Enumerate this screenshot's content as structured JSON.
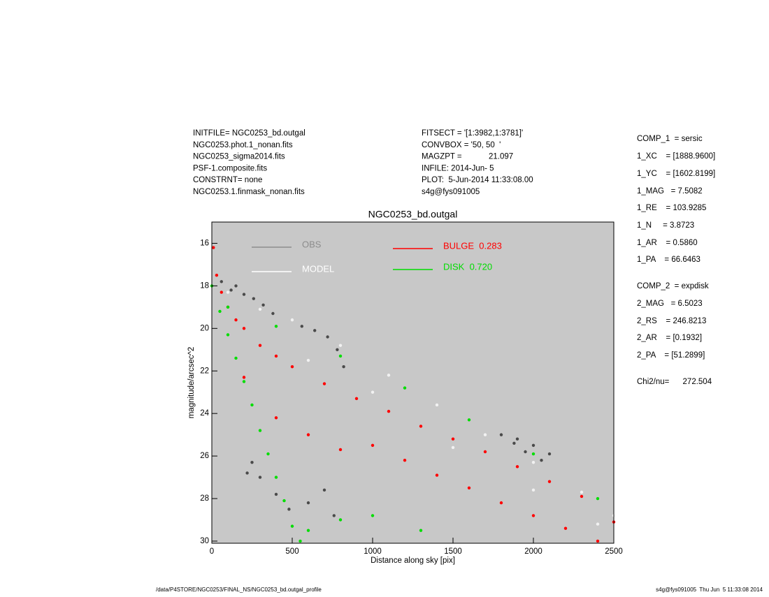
{
  "header": {
    "left": [
      "INITFILE= NGC0253_bd.outgal",
      "NGC0253.phot.1_nonan.fits",
      "NGC0253_sigma2014.fits",
      "PSF-1.composite.fits",
      "CONSTRNT= none",
      "NGC0253.1.finmask_nonan.fits"
    ],
    "center": [
      "FITSECT = '[1:3982,1:3781]'",
      "CONVBOX = '50, 50  '",
      "MAGZPT =            21.097",
      "INFILE: 2014-Jun- 5",
      "PLOT:  5-Jun-2014 11:33:08.00",
      "s4g@fys091005"
    ],
    "right": [
      "COMP_1  = sersic",
      "1_XC    = [1888.9600]",
      "1_YC    = [1602.8199]",
      "1_MAG   = 7.5082",
      "1_RE    = 103.9285",
      "1_N     = 3.8723",
      "1_AR    = 0.5860",
      "1_PA    = 66.6463",
      "COMP_2  = expdisk",
      "2_MAG   = 6.5023",
      "2_RS    = 246.8213",
      "2_AR    = [0.1932]",
      "2_PA    = [51.2899]",
      "Chi2/nu=      272.504"
    ]
  },
  "footer": {
    "left": "/data/P4STORE/NGC0253/FINAL_NS/NGC0253_bd.outgal_profile",
    "right": "s4g@fys091005  Thu Jun  5 11:33:08 2014"
  },
  "chart_data": {
    "type": "scatter",
    "title": "NGC0253_bd.outgal",
    "x_label": "Distance along sky [pix]",
    "y_label": "magnitude/arcsec^2",
    "xlim": [
      0,
      2500
    ],
    "ylim": [
      15,
      30.1
    ],
    "y_inverted": true,
    "xticks": [
      0,
      500,
      1000,
      1500,
      2000,
      2500
    ],
    "yticks": [
      16,
      18,
      20,
      22,
      24,
      26,
      28,
      30
    ],
    "background": "#c8c8c8",
    "series": [
      {
        "name": "OBS",
        "color": "#4a4a4a",
        "legend_color": "#8c8c8c",
        "x": [
          60,
          120,
          150,
          200,
          260,
          320,
          380,
          560,
          640,
          720,
          780,
          820,
          1900,
          1950,
          2000,
          2050,
          2100,
          1800,
          1880,
          300,
          400,
          480,
          600,
          700,
          760,
          220,
          250
        ],
        "y": [
          17.8,
          18.2,
          18,
          18.4,
          18.6,
          18.9,
          19.3,
          19.9,
          20.1,
          20.4,
          21,
          21.8,
          25.2,
          25.8,
          25.5,
          26.2,
          25.9,
          25,
          25.4,
          27,
          27.8,
          28.5,
          28.2,
          27.6,
          28.8,
          26.8,
          26.3
        ]
      },
      {
        "name": "MODEL",
        "color": "#f2f2f2",
        "legend_color": "#ffffff",
        "x": [
          100,
          300,
          500,
          800,
          1100,
          1400,
          1700,
          2000,
          2300,
          2500,
          600,
          1000,
          1500,
          2000,
          2400
        ],
        "y": [
          18.3,
          19.1,
          19.6,
          20.8,
          22.2,
          23.6,
          25,
          26.3,
          27.7,
          28.8,
          21.5,
          23,
          25.6,
          27.6,
          29.2
        ]
      },
      {
        "name": "BULGE  0.283",
        "color": "#ff0000",
        "legend_color": "#ff0000",
        "x": [
          10,
          30,
          60,
          100,
          150,
          200,
          300,
          400,
          500,
          700,
          900,
          1100,
          1300,
          1500,
          1700,
          1900,
          2100,
          2300,
          2500,
          200,
          400,
          600,
          800,
          1000,
          1200,
          1400,
          1600,
          1800,
          2000,
          2200,
          2400
        ],
        "y": [
          16.2,
          17.5,
          18.3,
          19,
          19.6,
          20,
          20.8,
          21.3,
          21.8,
          22.6,
          23.3,
          23.9,
          24.6,
          25.2,
          25.8,
          26.5,
          27.2,
          27.9,
          29.1,
          22.3,
          24.2,
          25,
          25.7,
          25.5,
          26.2,
          26.9,
          27.5,
          28.2,
          28.8,
          29.4,
          30
        ]
      },
      {
        "name": "DISK  0.720",
        "color": "#00dd00",
        "legend_color": "#00dd00",
        "x": [
          0,
          50,
          100,
          150,
          200,
          250,
          300,
          350,
          400,
          450,
          500,
          550,
          100,
          400,
          800,
          1200,
          1600,
          2000,
          2400,
          600,
          800,
          1000,
          1300
        ],
        "y": [
          18,
          19.2,
          20.3,
          21.4,
          22.5,
          23.6,
          24.8,
          25.9,
          27,
          28.1,
          29.3,
          30,
          19,
          19.9,
          21.3,
          22.8,
          24.3,
          25.9,
          28,
          29.5,
          29,
          28.8,
          29.5
        ]
      }
    ]
  }
}
